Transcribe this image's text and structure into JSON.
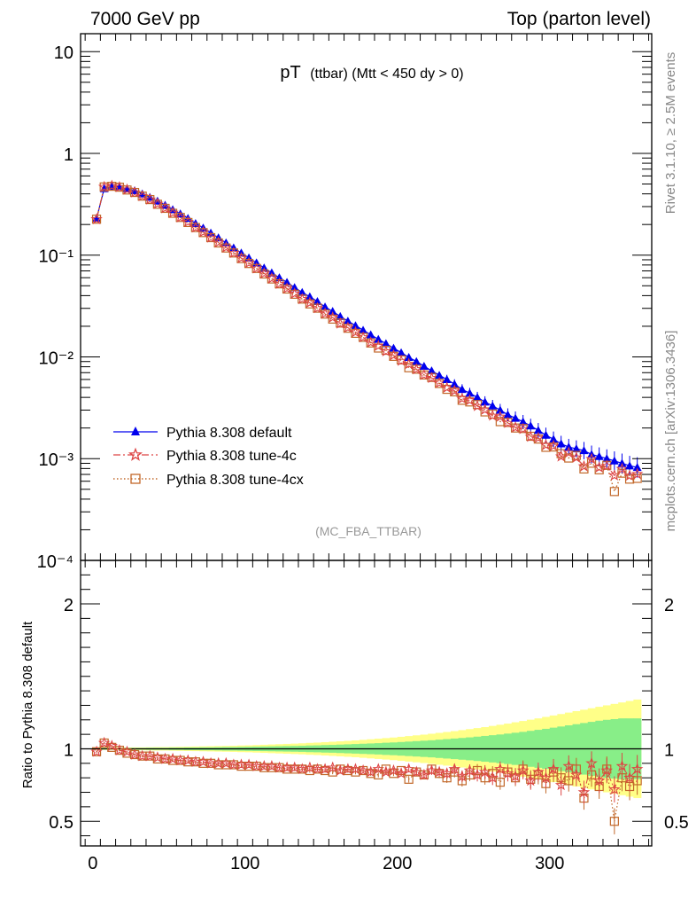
{
  "header": {
    "left": "7000 GeV pp",
    "right": "Top (parton level)"
  },
  "title": {
    "main": "pT",
    "sub": "(ttbar) (Mtt < 450 dy > 0)"
  },
  "side": {
    "rivet": "Rivet 3.1.10, ≥ 2.5M events",
    "mcplots": "mcplots.cern.ch [arXiv:1306.3436]"
  },
  "analysis": "(MC_FBA_TTBAR)",
  "ratio_ylabel": "Ratio to Pythia 8.308 default",
  "legend": [
    {
      "label": "Pythia 8.308 default",
      "color": "#0000ee",
      "marker": "triangle",
      "line": "solid"
    },
    {
      "label": "Pythia 8.308 tune-4c",
      "color": "#dd4444",
      "marker": "star",
      "line": "dashdot"
    },
    {
      "label": "Pythia 8.308 tune-4cx",
      "color": "#c2682a",
      "marker": "square",
      "line": "dotted"
    }
  ],
  "colors": {
    "band_outer": "#ffff88",
    "band_inner": "#88ee88"
  },
  "chart_data": {
    "type": "line",
    "x_range": [
      -8,
      367
    ],
    "x_ticks": [
      0,
      100,
      200,
      300
    ],
    "y_scale": "log",
    "y_range": [
      0.0001,
      15
    ],
    "y_ticks": [
      {
        "value": 10,
        "label": "10"
      },
      {
        "value": 1,
        "label": "1"
      },
      {
        "value": 0.1,
        "label": "10⁻¹"
      },
      {
        "value": 0.01,
        "label": "10⁻²"
      },
      {
        "value": 0.001,
        "label": "10⁻³"
      },
      {
        "value": 0.0001,
        "label": "10⁻⁴"
      }
    ],
    "default_series": {
      "name": "Pythia 8.308 default",
      "start_x": 2.5,
      "bin_width": 5,
      "values": [
        0.23,
        0.45,
        0.47,
        0.47,
        0.45,
        0.43,
        0.4,
        0.37,
        0.34,
        0.31,
        0.28,
        0.255,
        0.23,
        0.205,
        0.185,
        0.165,
        0.148,
        0.132,
        0.118,
        0.105,
        0.094,
        0.084,
        0.075,
        0.067,
        0.06,
        0.054,
        0.048,
        0.043,
        0.039,
        0.035,
        0.031,
        0.028,
        0.025,
        0.0225,
        0.0203,
        0.0183,
        0.0165,
        0.0149,
        0.0135,
        0.0122,
        0.011,
        0.0099,
        0.009,
        0.0081,
        0.0073,
        0.0066,
        0.006,
        0.0054,
        0.0048,
        0.0044,
        0.004,
        0.0036,
        0.0033,
        0.003,
        0.0027,
        0.0025,
        0.0023,
        0.0021,
        0.0019,
        0.0017,
        0.00155,
        0.0014,
        0.0013,
        0.00125,
        0.0012,
        0.0011,
        0.00105,
        0.001,
        0.00095,
        0.0009,
        0.00085,
        0.00082
      ]
    },
    "ratio_panel": {
      "y_range": [
        0.33,
        2.3
      ],
      "y_ticks": [
        0.5,
        1,
        2
      ],
      "reference": 1
    },
    "ratio_4c": [
      0.98,
      1.04,
      1.02,
      0.99,
      0.98,
      0.96,
      0.95,
      0.95,
      0.94,
      0.93,
      0.93,
      0.92,
      0.92,
      0.91,
      0.91,
      0.9,
      0.9,
      0.9,
      0.89,
      0.89,
      0.89,
      0.88,
      0.88,
      0.88,
      0.87,
      0.87,
      0.87,
      0.86,
      0.87,
      0.86,
      0.86,
      0.87,
      0.85,
      0.86,
      0.86,
      0.85,
      0.84,
      0.86,
      0.84,
      0.85,
      0.83,
      0.86,
      0.84,
      0.82,
      0.85,
      0.84,
      0.83,
      0.86,
      0.81,
      0.85,
      0.82,
      0.84,
      0.8,
      0.86,
      0.83,
      0.81,
      0.85,
      0.78,
      0.84,
      0.8,
      0.86,
      0.75,
      0.88,
      0.82,
      0.7,
      0.9,
      0.78,
      0.85,
      0.72,
      0.88,
      0.8,
      0.86
    ],
    "ratio_4cx": [
      0.98,
      1.04,
      1.01,
      0.99,
      0.97,
      0.96,
      0.95,
      0.95,
      0.93,
      0.93,
      0.92,
      0.92,
      0.91,
      0.91,
      0.9,
      0.9,
      0.89,
      0.89,
      0.89,
      0.88,
      0.88,
      0.88,
      0.87,
      0.87,
      0.87,
      0.86,
      0.86,
      0.86,
      0.85,
      0.86,
      0.85,
      0.84,
      0.86,
      0.85,
      0.84,
      0.85,
      0.83,
      0.82,
      0.86,
      0.83,
      0.85,
      0.79,
      0.84,
      0.82,
      0.86,
      0.83,
      0.8,
      0.84,
      0.78,
      0.82,
      0.85,
      0.8,
      0.83,
      0.77,
      0.84,
      0.8,
      0.86,
      0.79,
      0.82,
      0.76,
      0.84,
      0.8,
      0.78,
      0.86,
      0.66,
      0.82,
      0.74,
      0.86,
      0.5,
      0.8,
      0.74,
      0.78
    ],
    "band_inner_halfwidth": [
      0.005,
      0.005,
      0.005,
      0.005,
      0.006,
      0.006,
      0.006,
      0.007,
      0.007,
      0.007,
      0.008,
      0.008,
      0.009,
      0.009,
      0.01,
      0.01,
      0.011,
      0.012,
      0.012,
      0.013,
      0.014,
      0.015,
      0.016,
      0.017,
      0.018,
      0.019,
      0.02,
      0.021,
      0.023,
      0.024,
      0.026,
      0.027,
      0.029,
      0.031,
      0.033,
      0.035,
      0.037,
      0.039,
      0.042,
      0.044,
      0.047,
      0.05,
      0.053,
      0.056,
      0.059,
      0.063,
      0.067,
      0.071,
      0.075,
      0.079,
      0.084,
      0.089,
      0.094,
      0.099,
      0.105,
      0.111,
      0.117,
      0.124,
      0.131,
      0.138,
      0.146,
      0.154,
      0.162,
      0.17,
      0.178,
      0.186,
      0.194,
      0.2,
      0.205,
      0.21,
      0.21,
      0.21
    ],
    "band_outer_halfwidth": [
      0.008,
      0.008,
      0.008,
      0.009,
      0.009,
      0.01,
      0.01,
      0.011,
      0.012,
      0.012,
      0.013,
      0.014,
      0.015,
      0.016,
      0.017,
      0.018,
      0.019,
      0.02,
      0.021,
      0.023,
      0.024,
      0.026,
      0.028,
      0.03,
      0.032,
      0.034,
      0.036,
      0.038,
      0.041,
      0.043,
      0.046,
      0.049,
      0.052,
      0.055,
      0.058,
      0.062,
      0.066,
      0.07,
      0.074,
      0.078,
      0.083,
      0.088,
      0.093,
      0.098,
      0.104,
      0.11,
      0.116,
      0.122,
      0.129,
      0.136,
      0.143,
      0.15,
      0.158,
      0.166,
      0.174,
      0.183,
      0.192,
      0.201,
      0.21,
      0.22,
      0.23,
      0.24,
      0.25,
      0.26,
      0.27,
      0.28,
      0.29,
      0.3,
      0.31,
      0.32,
      0.33,
      0.34
    ]
  }
}
